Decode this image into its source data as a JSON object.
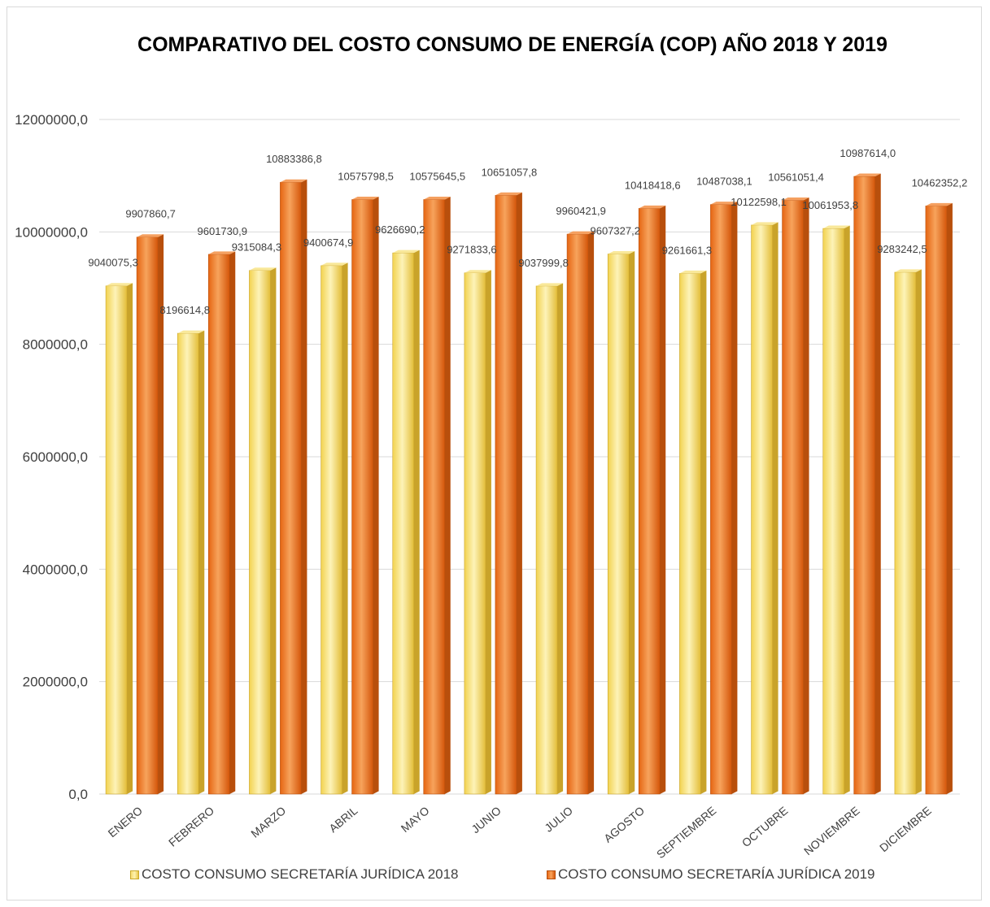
{
  "colors": {
    "series_2018": "#f5dc6a",
    "series_2019": "#f08030",
    "gridline": "#d9d9d9",
    "text": "#404040"
  },
  "chart_data": {
    "type": "bar",
    "title": "COMPARATIVO DEL COSTO CONSUMO DE ENERGÍA  (COP) AÑO 2018 Y 2019",
    "xlabel": "",
    "ylabel": "",
    "ylim": [
      0,
      12000000
    ],
    "y_ticks": [
      "0,0",
      "2000000,0",
      "4000000,0",
      "6000000,0",
      "8000000,0",
      "10000000,0",
      "12000000,0"
    ],
    "categories": [
      "ENERO",
      "FEBRERO",
      "MARZO",
      "ABRIL",
      "MAYO",
      "JUNIO",
      "JULIO",
      "AGOSTO",
      "SEPTIEMBRE",
      "OCTUBRE",
      "NOVIEMBRE",
      "DICIEMBRE"
    ],
    "series": [
      {
        "name": "COSTO CONSUMO SECRETARÍA JURÍDICA 2018",
        "values": [
          9040075.3,
          8196614.8,
          9315084.3,
          9400674.9,
          9626690.2,
          9271833.6,
          9037999.8,
          9607327.2,
          9261661.3,
          10122598.1,
          10061953.8,
          9283242.5
        ],
        "labels": [
          "9040075,3",
          "8196614,8",
          "9315084,3",
          "9400674,9",
          "9626690,2",
          "9271833,6",
          "9037999,8",
          "9607327,2",
          "9261661,3",
          "10122598,1",
          "10061953,8",
          "9283242,5"
        ]
      },
      {
        "name": "COSTO CONSUMO SECRETARÍA JURÍDICA 2019",
        "values": [
          9907860.7,
          9601730.9,
          10883386.8,
          10575798.5,
          10575645.5,
          10651057.8,
          9960421.9,
          10418418.6,
          10487038.1,
          10561051.4,
          10987614.0,
          10462352.2
        ],
        "labels": [
          "9907860,7",
          "9601730,9",
          "10883386,8",
          "10575798,5",
          "10575645,5",
          "10651057,8",
          "9960421,9",
          "10418418,6",
          "10487038,1",
          "10561051,4",
          "10987614,0",
          "10462352,2"
        ]
      }
    ],
    "grid": true,
    "legend_position": "bottom"
  }
}
